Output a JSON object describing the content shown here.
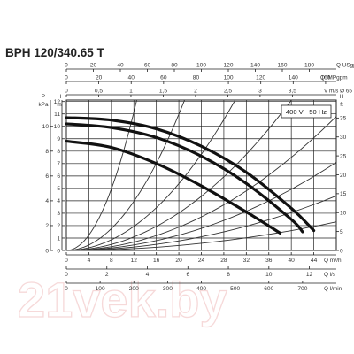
{
  "title": "BPH 120/340.65 T",
  "watermark": "21vek.by",
  "chart_data": {
    "type": "line",
    "title": "BPH 120/340.65 T",
    "legend": {
      "label": "400 V~ 50 Hz",
      "placement": "top-right"
    },
    "grid": true,
    "x_axis_units": [
      "Q USgpm",
      "Q IMPgpm",
      "V m/s Ø 65",
      "Q m³/h",
      "Q l/s",
      "Q l/min"
    ],
    "y_axis_units": [
      "P kPa",
      "H m",
      "H ft"
    ],
    "top_axes": [
      {
        "unit": "Q USgpm",
        "range": [
          0,
          200
        ],
        "ticks": [
          "0",
          "20",
          "40",
          "60",
          "80",
          "100",
          "120",
          "140",
          "160",
          "180"
        ]
      },
      {
        "unit": "Q IMPgpm",
        "range": [
          0,
          166.6
        ],
        "ticks": [
          "0",
          "20",
          "40",
          "60",
          "80",
          "100",
          "120",
          "140",
          "160"
        ]
      },
      {
        "unit": "V m/s Ø 65",
        "range": [
          0,
          4.18
        ],
        "ticks": [
          "0",
          "0,5",
          "1",
          "1,5",
          "2",
          "2,5",
          "3",
          "3,5"
        ]
      }
    ],
    "bottom_axes": [
      {
        "unit": "Q m³/h",
        "range": [
          0,
          48
        ],
        "ticks": [
          "0",
          "4",
          "8",
          "12",
          "16",
          "20",
          "24",
          "28",
          "32",
          "36",
          "40",
          "44"
        ]
      },
      {
        "unit": "Q l/s",
        "range": [
          0,
          13.33
        ],
        "ticks": [
          "0",
          "2",
          "4",
          "6",
          "8",
          "10",
          "12"
        ]
      },
      {
        "unit": "Q l/min",
        "range": [
          0,
          800
        ],
        "ticks": [
          "0",
          "100",
          "200",
          "300",
          "400",
          "500",
          "600",
          "700"
        ]
      }
    ],
    "left_axes": [
      {
        "unit": "P kPa",
        "range": [
          0,
          12.12
        ],
        "ticks": [
          "0",
          "2",
          "4",
          "6",
          "8",
          "10"
        ]
      },
      {
        "unit": "H m",
        "range": [
          0,
          12.12
        ],
        "ticks": [
          "0",
          "1",
          "2",
          "3",
          "4",
          "5",
          "6",
          "7",
          "8",
          "9",
          "10",
          "11",
          "12"
        ]
      }
    ],
    "right_axis": {
      "unit": "H ft",
      "range": [
        0,
        39.76
      ],
      "ticks": [
        "0",
        "5",
        "10",
        "15",
        "20",
        "25",
        "30",
        "35"
      ]
    },
    "xlim": [
      0,
      48
    ],
    "ylim": [
      0,
      12.12
    ],
    "series": [
      {
        "x": [
          0,
          8,
          16,
          24,
          32,
          40,
          44
        ],
        "y": [
          10.7,
          10.5,
          9.8,
          8.4,
          6.3,
          3.4,
          1.6
        ]
      },
      {
        "x": [
          0,
          8,
          16,
          24,
          32,
          40,
          42
        ],
        "y": [
          10.2,
          9.9,
          9.1,
          7.6,
          5.4,
          2.5,
          1.5
        ]
      },
      {
        "x": [
          0,
          8,
          16,
          24,
          32,
          38
        ],
        "y": [
          8.8,
          8.3,
          7.0,
          5.2,
          3.1,
          1.4
        ]
      }
    ],
    "system_curves": [
      {
        "x": [
          0,
          12.5
        ],
        "y": [
          0,
          12.1
        ]
      },
      {
        "x": [
          0,
          21
        ],
        "y": [
          0,
          12.1
        ]
      },
      {
        "x": [
          0,
          30
        ],
        "y": [
          0,
          12.1
        ]
      },
      {
        "x": [
          0,
          40
        ],
        "y": [
          0,
          12.1
        ]
      },
      {
        "x": [
          0,
          48
        ],
        "y": [
          0,
          10.8
        ]
      },
      {
        "x": [
          0,
          48
        ],
        "y": [
          0,
          7.1
        ]
      },
      {
        "x": [
          0,
          48
        ],
        "y": [
          0,
          4.4
        ]
      },
      {
        "x": [
          0,
          48
        ],
        "y": [
          0,
          2.3
        ]
      }
    ]
  }
}
